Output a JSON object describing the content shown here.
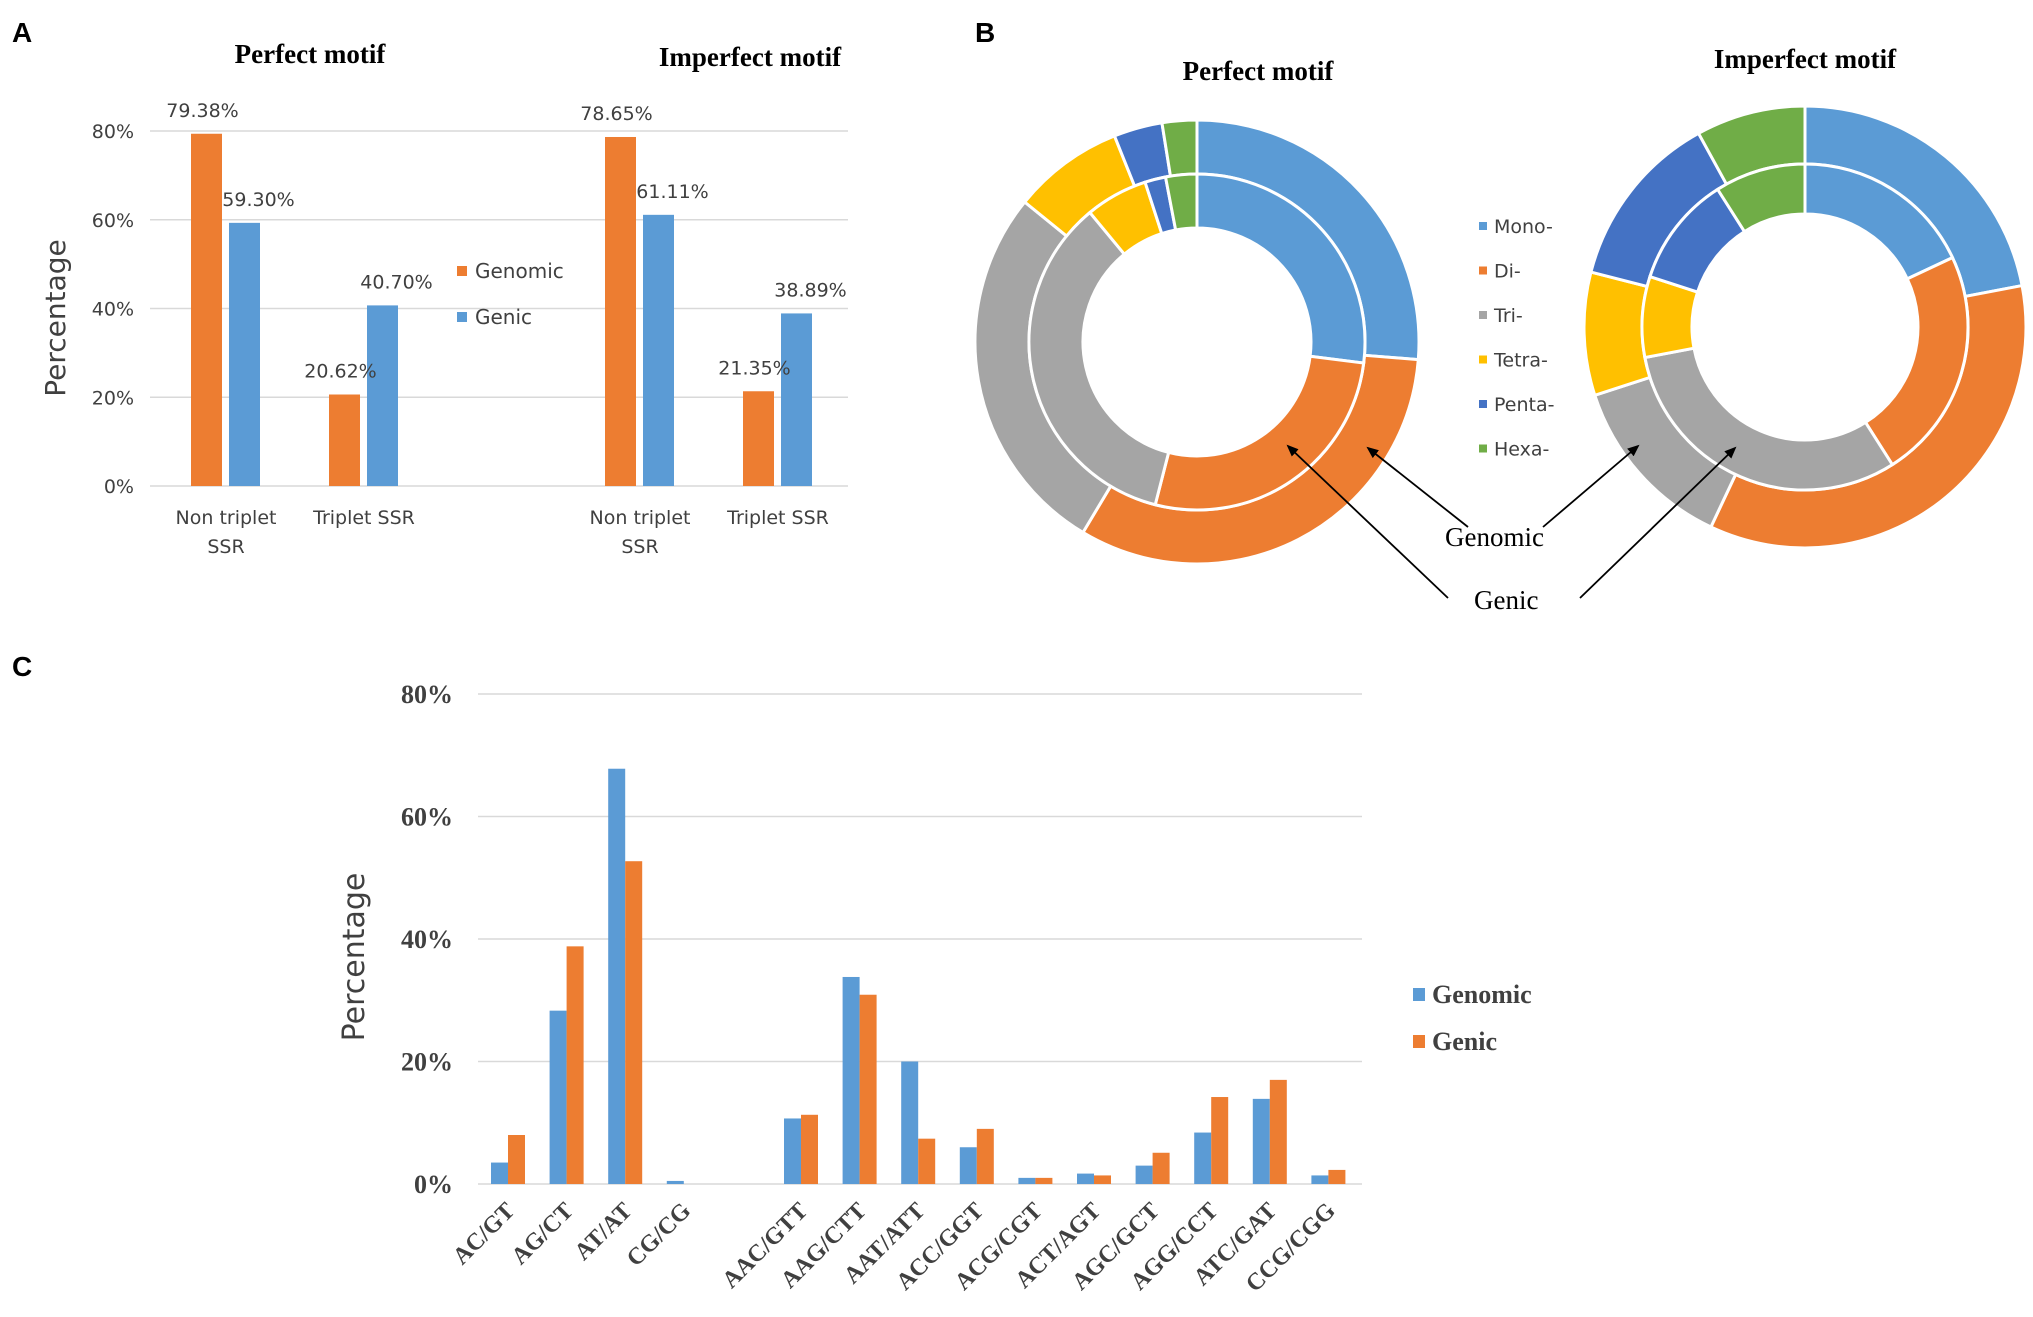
{
  "panels": {
    "a": "A",
    "b": "B",
    "c": "C"
  },
  "colors": {
    "orange": "#ED7D31",
    "blue": "#5B9BD5",
    "gray": "#A5A5A5",
    "yellow": "#FFC000",
    "darkblue": "#4472C4",
    "green": "#70AD47",
    "grid": "#D9D9D9"
  },
  "chart_data": [
    {
      "id": "A",
      "type": "bar",
      "ylabel": "Percentage",
      "ylim": [
        0,
        80
      ],
      "yticks": [
        "0%",
        "20%",
        "40%",
        "60%",
        "80%"
      ],
      "yticks_values": [
        0,
        20,
        40,
        60,
        80
      ],
      "legend": [
        "Genomic",
        "Genic"
      ],
      "groups": [
        {
          "title": "Perfect motif",
          "categories": [
            [
              "Non triplet",
              "SSR"
            ],
            [
              "Triplet SSR"
            ]
          ],
          "series": [
            {
              "name": "Genomic",
              "values": [
                79.38,
                20.62
              ],
              "labels": [
                "79.38%",
                "20.62%"
              ]
            },
            {
              "name": "Genic",
              "values": [
                59.3,
                40.7
              ],
              "labels": [
                "59.30%",
                "40.70%"
              ]
            }
          ]
        },
        {
          "title": "Imperfect motif",
          "categories": [
            [
              "Non triplet",
              "SSR"
            ],
            [
              "Triplet SSR"
            ]
          ],
          "series": [
            {
              "name": "Genomic",
              "values": [
                78.65,
                21.35
              ],
              "labels": [
                "78.65%",
                "21.35%"
              ]
            },
            {
              "name": "Genic",
              "values": [
                61.11,
                38.89
              ],
              "labels": [
                "61.11%",
                "38.89%"
              ]
            }
          ]
        }
      ]
    },
    {
      "id": "B",
      "type": "pie",
      "legend": [
        "Mono-",
        "Di-",
        "Tri-",
        "Tetra-",
        "Penta-",
        "Hexa-"
      ],
      "annotations": [
        "Genomic",
        "Genic"
      ],
      "donuts": [
        {
          "title": "Perfect motif",
          "outer_genomic": [
            26,
            32,
            27,
            8,
            3.5,
            2.5
          ],
          "inner_genic": [
            27,
            27,
            35,
            6,
            2,
            3
          ]
        },
        {
          "title": "Imperfect motif",
          "outer_genomic": [
            22,
            35,
            13,
            9,
            13,
            8
          ],
          "inner_genic": [
            18,
            23,
            31,
            8,
            11,
            9
          ]
        }
      ]
    },
    {
      "id": "C",
      "type": "bar",
      "ylabel": "Percentage",
      "ylim": [
        0,
        80
      ],
      "yticks": [
        "0%",
        "20%",
        "40%",
        "60%",
        "80%"
      ],
      "yticks_values": [
        0,
        20,
        40,
        60,
        80
      ],
      "legend": [
        "Genomic",
        "Genic"
      ],
      "categories": [
        "AC/GT",
        "AG/CT",
        "AT/AT",
        "CG/CG",
        "",
        "AAC/GTT",
        "AAG/CTT",
        "AAT/ATT",
        "ACC/GGT",
        "ACG/CGT",
        "ACT/AGT",
        "AGC/GCT",
        "AGG/CCT",
        "ATC/GAT",
        "CCG/CGG"
      ],
      "series": [
        {
          "name": "Genomic",
          "values": [
            3.5,
            28.3,
            67.8,
            0.5,
            null,
            10.7,
            33.8,
            20.0,
            6.0,
            1.0,
            1.7,
            3.0,
            8.4,
            13.9,
            1.4
          ]
        },
        {
          "name": "Genic",
          "values": [
            8.0,
            38.8,
            52.7,
            0,
            null,
            11.3,
            30.9,
            7.4,
            9.0,
            1.0,
            1.4,
            5.1,
            14.2,
            17.0,
            2.3
          ]
        }
      ]
    }
  ]
}
